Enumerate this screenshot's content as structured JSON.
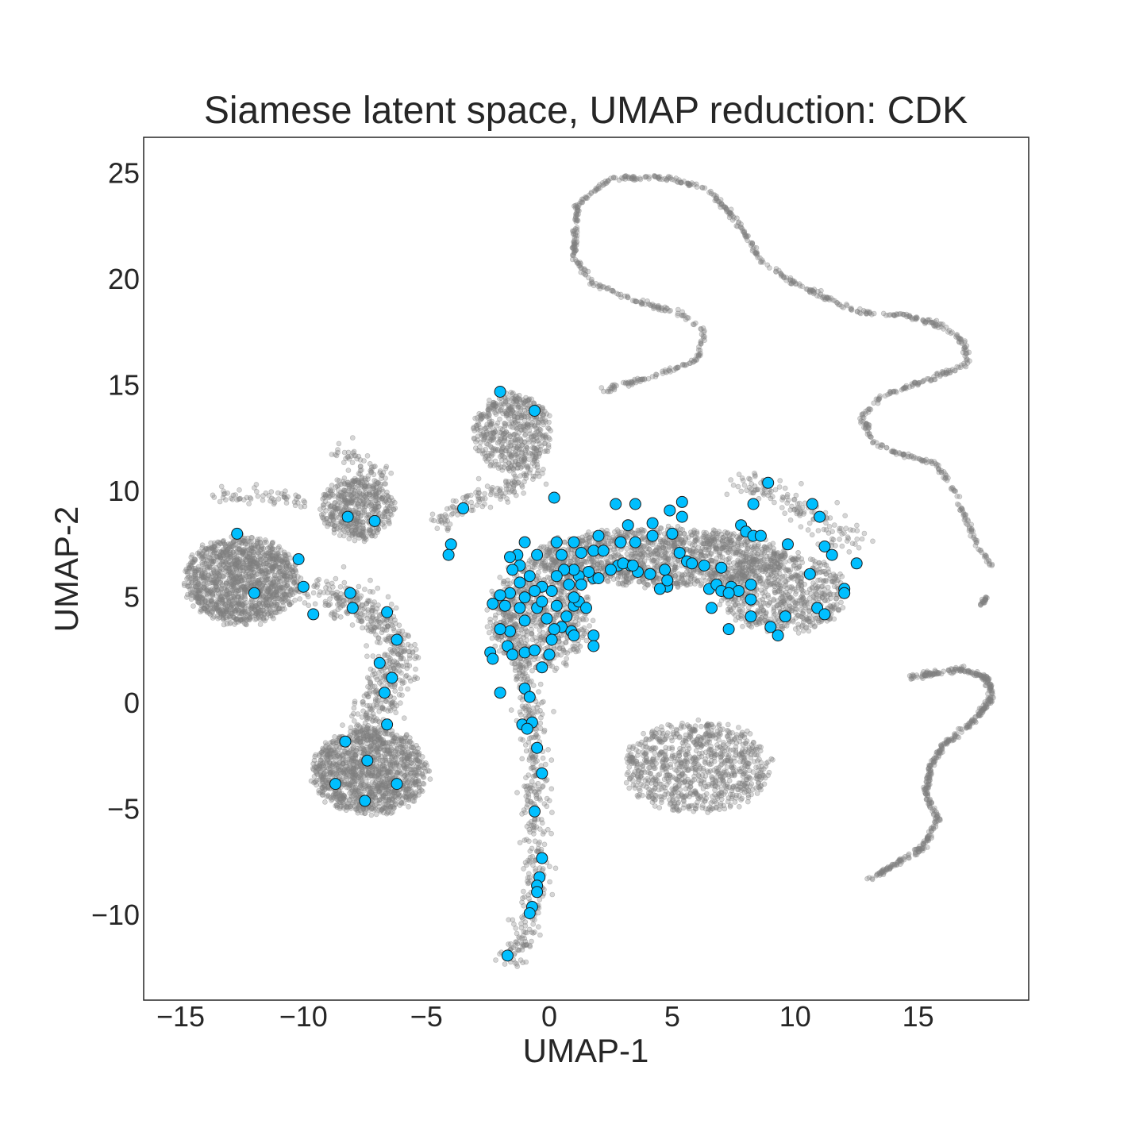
{
  "chart_data": {
    "type": "scatter",
    "title": "Siamese latent space, UMAP reduction: CDK",
    "xlabel": "UMAP-1",
    "ylabel": "UMAP-2",
    "xlim": [
      -16.5,
      19.5
    ],
    "ylim": [
      -14.0,
      26.7
    ],
    "xticks": [
      -15,
      -10,
      -5,
      0,
      5,
      10,
      15
    ],
    "yticks": [
      -10,
      -5,
      0,
      5,
      10,
      15,
      20,
      25
    ],
    "xtick_labels": [
      "−15",
      "−10",
      "−5",
      "0",
      "5",
      "10",
      "15"
    ],
    "ytick_labels": [
      "−10",
      "−5",
      "0",
      "5",
      "10",
      "15",
      "20",
      "25"
    ],
    "grid": false,
    "legend": "none",
    "colors": {
      "background_points": "#808080",
      "highlight_points": "#00bfff",
      "highlight_edge": "#1a1a1a"
    },
    "series": [
      {
        "role": "background",
        "clusters": [
          {
            "shape": "blob",
            "center": [
              -12.5,
              5.8
            ],
            "radius": [
              2.5,
              2.2
            ],
            "density": 1400
          },
          {
            "shape": "blob",
            "center": [
              -7.8,
              9.2
            ],
            "radius": [
              1.6,
              1.6
            ],
            "density": 500
          },
          {
            "shape": "blob",
            "center": [
              -7.3,
              -3.2
            ],
            "radius": [
              2.5,
              2.2
            ],
            "density": 1300
          },
          {
            "shape": "blob",
            "center": [
              -1.5,
              12.8
            ],
            "radius": [
              1.7,
              2.0
            ],
            "density": 550
          },
          {
            "shape": "blob",
            "center": [
              6.0,
              -3.0
            ],
            "radius": [
              3.2,
              2.3
            ],
            "density": 900
          },
          {
            "shape": "blob",
            "center": [
              4.5,
              6.9
            ],
            "radius": [
              5.5,
              1.5
            ],
            "density": 1400
          },
          {
            "shape": "blob",
            "center": [
              9.5,
              5.2
            ],
            "radius": [
              2.8,
              2.0
            ],
            "density": 700
          },
          {
            "shape": "blob",
            "center": [
              -0.4,
              4.2
            ],
            "radius": [
              2.2,
              2.8
            ],
            "density": 700
          }
        ],
        "paths": [
          {
            "points": [
              [
                -9.5,
                5.0
              ],
              [
                -8.0,
                5.0
              ],
              [
                -6.8,
                4.0
              ],
              [
                -6.0,
                2.5
              ],
              [
                -6.8,
                0.5
              ],
              [
                -7.5,
                -1.5
              ]
            ],
            "spread": 0.45,
            "count": 520
          },
          {
            "points": [
              [
                -4.5,
                8.5
              ],
              [
                -3.2,
                9.5
              ],
              [
                -1.5,
                10.2
              ],
              [
                -0.5,
                11.0
              ]
            ],
            "spread": 0.25,
            "count": 140
          },
          {
            "points": [
              [
                -1.8,
                5.0
              ],
              [
                -1.2,
                1.5
              ],
              [
                -0.6,
                -1.0
              ],
              [
                -0.6,
                -4.0
              ],
              [
                -0.5,
                -7.0
              ],
              [
                -0.6,
                -9.5
              ],
              [
                -1.0,
                -11.2
              ],
              [
                -1.8,
                -12.3
              ]
            ],
            "spread": 0.28,
            "count": 460
          },
          {
            "points": [
              [
                -8.5,
                12.0
              ],
              [
                -7.5,
                11.0
              ],
              [
                -6.5,
                10.5
              ]
            ],
            "spread": 0.25,
            "count": 60
          },
          {
            "points": [
              [
                -13.5,
                9.8
              ],
              [
                -11.5,
                9.8
              ],
              [
                -10.0,
                9.5
              ]
            ],
            "spread": 0.2,
            "count": 60
          },
          {
            "points": [
              [
                7.5,
                10.5
              ],
              [
                9.0,
                10.2
              ],
              [
                10.5,
                9.0
              ],
              [
                12.5,
                7.5
              ]
            ],
            "spread": 0.3,
            "count": 140
          },
          {
            "points": [
              [
                2.2,
                14.8
              ],
              [
                4.5,
                15.5
              ],
              [
                6.0,
                16.2
              ],
              [
                6.3,
                17.5
              ],
              [
                5.5,
                18.3
              ],
              [
                3.5,
                19.0
              ],
              [
                1.8,
                19.8
              ],
              [
                1.0,
                21.0
              ],
              [
                1.1,
                23.5
              ],
              [
                2.5,
                24.8
              ],
              [
                4.8,
                24.8
              ],
              [
                6.5,
                24.2
              ],
              [
                7.8,
                22.5
              ],
              [
                8.5,
                21.0
              ],
              [
                10.0,
                19.8
              ],
              [
                12.5,
                18.5
              ],
              [
                14.5,
                18.3
              ],
              [
                16.0,
                17.8
              ],
              [
                16.9,
                17.0
              ],
              [
                17.0,
                16.0
              ],
              [
                15.5,
                15.3
              ],
              [
                13.5,
                14.5
              ],
              [
                12.7,
                13.5
              ],
              [
                13.2,
                12.3
              ],
              [
                14.5,
                11.7
              ],
              [
                15.7,
                11.3
              ],
              [
                16.5,
                10.0
              ],
              [
                17.0,
                8.5
              ],
              [
                17.5,
                7.2
              ],
              [
                18.0,
                6.5
              ]
            ],
            "spread": 0.06,
            "count": 900
          },
          {
            "points": [
              [
                17.8,
                5.0
              ],
              [
                17.6,
                4.7
              ]
            ],
            "spread": 0.04,
            "count": 20
          },
          {
            "points": [
              [
                14.6,
                1.2
              ],
              [
                15.5,
                1.4
              ],
              [
                16.8,
                1.6
              ],
              [
                17.8,
                1.2
              ],
              [
                18.0,
                0.3
              ],
              [
                17.3,
                -0.8
              ],
              [
                16.0,
                -2.0
              ],
              [
                15.5,
                -3.0
              ],
              [
                15.3,
                -4.3
              ],
              [
                15.8,
                -5.5
              ],
              [
                15.2,
                -6.8
              ],
              [
                14.2,
                -7.5
              ],
              [
                13.0,
                -8.3
              ]
            ],
            "spread": 0.06,
            "count": 500
          }
        ]
      },
      {
        "role": "highlight",
        "points": [
          [
            -12.7,
            8.0
          ],
          [
            -12.0,
            5.2
          ],
          [
            -10.2,
            6.8
          ],
          [
            -10.0,
            5.5
          ],
          [
            -9.6,
            4.2
          ],
          [
            -8.2,
            8.8
          ],
          [
            -8.1,
            5.2
          ],
          [
            -8.0,
            4.5
          ],
          [
            -7.1,
            8.6
          ],
          [
            -6.6,
            4.3
          ],
          [
            -6.2,
            3.0
          ],
          [
            -6.9,
            1.9
          ],
          [
            -6.4,
            1.2
          ],
          [
            -6.7,
            0.5
          ],
          [
            -6.6,
            -1.0
          ],
          [
            -8.3,
            -1.8
          ],
          [
            -7.4,
            -2.7
          ],
          [
            -8.7,
            -3.8
          ],
          [
            -7.5,
            -4.6
          ],
          [
            -6.2,
            -3.8
          ],
          [
            -3.5,
            9.2
          ],
          [
            -4.0,
            7.5
          ],
          [
            -4.1,
            7.0
          ],
          [
            -2.0,
            14.7
          ],
          [
            -0.6,
            13.8
          ],
          [
            0.2,
            9.7
          ],
          [
            -1.3,
            7.0
          ],
          [
            -1.6,
            6.9
          ],
          [
            -1.0,
            7.6
          ],
          [
            -0.5,
            7.0
          ],
          [
            0.3,
            7.6
          ],
          [
            0.5,
            7.0
          ],
          [
            1.0,
            7.6
          ],
          [
            1.3,
            7.1
          ],
          [
            1.8,
            7.2
          ],
          [
            2.0,
            7.9
          ],
          [
            2.2,
            7.2
          ],
          [
            2.7,
            9.4
          ],
          [
            3.5,
            9.4
          ],
          [
            3.2,
            8.4
          ],
          [
            2.9,
            7.6
          ],
          [
            3.5,
            7.6
          ],
          [
            4.2,
            8.5
          ],
          [
            4.2,
            7.9
          ],
          [
            4.9,
            9.1
          ],
          [
            5.4,
            9.5
          ],
          [
            5.4,
            8.8
          ],
          [
            5.0,
            8.0
          ],
          [
            5.3,
            7.1
          ],
          [
            5.6,
            6.7
          ],
          [
            6.3,
            6.5
          ],
          [
            5.8,
            6.6
          ],
          [
            4.7,
            6.3
          ],
          [
            4.1,
            6.1
          ],
          [
            3.6,
            6.2
          ],
          [
            3.3,
            6.5
          ],
          [
            2.8,
            6.5
          ],
          [
            2.5,
            6.3
          ],
          [
            1.8,
            5.9
          ],
          [
            1.6,
            6.2
          ],
          [
            1.2,
            6.0
          ],
          [
            1.0,
            6.3
          ],
          [
            0.6,
            6.3
          ],
          [
            0.3,
            6.0
          ],
          [
            0.1,
            5.3
          ],
          [
            -0.3,
            5.5
          ],
          [
            -0.6,
            5.3
          ],
          [
            -1.0,
            5.0
          ],
          [
            -1.2,
            6.5
          ],
          [
            -1.5,
            6.3
          ],
          [
            -0.8,
            6.0
          ],
          [
            -1.2,
            5.7
          ],
          [
            -1.6,
            5.2
          ],
          [
            -2.0,
            5.1
          ],
          [
            -2.3,
            4.7
          ],
          [
            -1.8,
            4.6
          ],
          [
            -1.2,
            4.5
          ],
          [
            -0.5,
            4.5
          ],
          [
            -0.3,
            4.8
          ],
          [
            0.3,
            4.6
          ],
          [
            0.7,
            4.1
          ],
          [
            1.0,
            4.6
          ],
          [
            1.2,
            4.8
          ],
          [
            1.5,
            4.5
          ],
          [
            0.5,
            3.6
          ],
          [
            0.9,
            3.4
          ],
          [
            0.2,
            3.5
          ],
          [
            -0.1,
            4.0
          ],
          [
            -1.0,
            3.9
          ],
          [
            -1.6,
            3.4
          ],
          [
            -2.0,
            3.5
          ],
          [
            -1.7,
            2.7
          ],
          [
            -1.5,
            2.3
          ],
          [
            -1.0,
            2.4
          ],
          [
            -0.6,
            2.5
          ],
          [
            -0.3,
            1.7
          ],
          [
            0.0,
            2.3
          ],
          [
            1.8,
            3.2
          ],
          [
            1.8,
            2.7
          ],
          [
            -2.4,
            2.4
          ],
          [
            -2.3,
            2.1
          ],
          [
            -2.0,
            0.5
          ],
          [
            -1.0,
            0.7
          ],
          [
            -0.8,
            0.3
          ],
          [
            -1.1,
            -1.0
          ],
          [
            -0.7,
            -0.9
          ],
          [
            -0.9,
            -1.2
          ],
          [
            -0.5,
            -2.1
          ],
          [
            -0.3,
            -3.3
          ],
          [
            -0.6,
            -5.1
          ],
          [
            -0.3,
            -7.3
          ],
          [
            -0.4,
            -8.2
          ],
          [
            -0.5,
            -8.6
          ],
          [
            -0.5,
            -8.9
          ],
          [
            -0.7,
            -9.6
          ],
          [
            -0.8,
            -9.9
          ],
          [
            -1.7,
            -11.9
          ],
          [
            6.5,
            5.4
          ],
          [
            6.8,
            5.6
          ],
          [
            7.0,
            5.3
          ],
          [
            7.4,
            5.5
          ],
          [
            7.7,
            5.3
          ],
          [
            7.3,
            5.2
          ],
          [
            8.2,
            5.6
          ],
          [
            8.2,
            4.9
          ],
          [
            7.0,
            6.4
          ],
          [
            7.8,
            8.4
          ],
          [
            8.0,
            8.1
          ],
          [
            8.3,
            7.9
          ],
          [
            8.6,
            7.9
          ],
          [
            8.3,
            9.4
          ],
          [
            8.9,
            10.4
          ],
          [
            9.7,
            7.5
          ],
          [
            10.7,
            9.4
          ],
          [
            11.0,
            8.8
          ],
          [
            11.2,
            7.4
          ],
          [
            11.5,
            7.0
          ],
          [
            12.5,
            6.6
          ],
          [
            10.6,
            6.1
          ],
          [
            10.9,
            4.5
          ],
          [
            11.2,
            4.2
          ],
          [
            12.0,
            5.4
          ],
          [
            12.0,
            5.2
          ],
          [
            9.6,
            4.1
          ],
          [
            8.2,
            4.1
          ],
          [
            9.0,
            3.6
          ],
          [
            9.3,
            3.2
          ],
          [
            7.3,
            3.5
          ],
          [
            6.6,
            4.5
          ],
          [
            4.8,
            5.5
          ],
          [
            4.8,
            5.8
          ],
          [
            4.5,
            5.4
          ],
          [
            3.0,
            6.6
          ],
          [
            2.0,
            5.9
          ],
          [
            1.0,
            5.0
          ],
          [
            1.3,
            5.6
          ],
          [
            0.8,
            5.6
          ],
          [
            0.1,
            3.0
          ],
          [
            1.0,
            3.2
          ],
          [
            3.4,
            6.5
          ]
        ]
      }
    ]
  }
}
